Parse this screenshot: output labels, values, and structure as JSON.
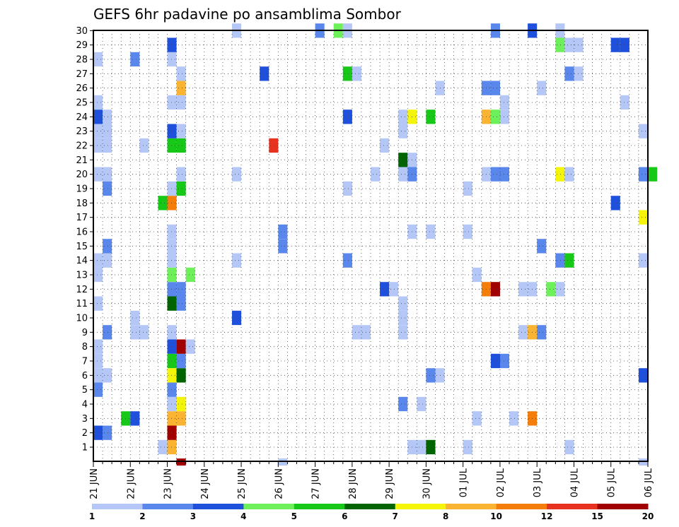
{
  "chart_data": {
    "type": "heatmap",
    "title": "GEFS 6hr padavine po ansamblima Sombor",
    "xlabel": "",
    "ylabel": "",
    "x_tick_labels": [
      "21 JUN",
      "22 JUN",
      "23 JUN",
      "24 JUN",
      "25 JUN",
      "26 JUN",
      "27 JUN",
      "28 JUN",
      "29 JUN",
      "30 JUN",
      "01 JUL",
      "02 JUL",
      "03 JUL",
      "04 JUL",
      "05 JUL",
      "06 JUL"
    ],
    "y_tick_labels": [
      "1",
      "2",
      "3",
      "4",
      "5",
      "6",
      "7",
      "8",
      "9",
      "10",
      "11",
      "12",
      "13",
      "14",
      "15",
      "16",
      "17",
      "18",
      "19",
      "20",
      "21",
      "22",
      "23",
      "24",
      "25",
      "26",
      "27",
      "28",
      "29",
      "30"
    ],
    "time_step_hours": 6,
    "grid": true,
    "legend_placement": "bottom",
    "color_scale": {
      "boundaries": [
        "1",
        "2",
        "3",
        "4",
        "5",
        "6",
        "7",
        "8",
        "10",
        "12",
        "15",
        "20"
      ],
      "colors": [
        "#b4c7f7",
        "#5a87ec",
        "#1e50dc",
        "#6ef05a",
        "#18c818",
        "#006400",
        "#f5f50a",
        "#fab432",
        "#f57d0a",
        "#e6321e",
        "#a00000"
      ]
    },
    "cells": [
      [
        0,
        28,
        0
      ],
      [
        0,
        24,
        2
      ],
      [
        0,
        23,
        0
      ],
      [
        1,
        23,
        0
      ],
      [
        0,
        22,
        0
      ],
      [
        1,
        22,
        0
      ],
      [
        0,
        20,
        0
      ],
      [
        1,
        20,
        0
      ],
      [
        1,
        19,
        1
      ],
      [
        0,
        13,
        0
      ],
      [
        0,
        11,
        0
      ],
      [
        1,
        14,
        0
      ],
      [
        1,
        15,
        1
      ],
      [
        1,
        9,
        1
      ],
      [
        0,
        8,
        0
      ],
      [
        0,
        7,
        0
      ],
      [
        0,
        6,
        0
      ],
      [
        1,
        6,
        0
      ],
      [
        0,
        5,
        1
      ],
      [
        0,
        2,
        2
      ],
      [
        1,
        2,
        1
      ],
      [
        0,
        25,
        0
      ],
      [
        1,
        24,
        0
      ],
      [
        0,
        14,
        0
      ],
      [
        3,
        3,
        4
      ],
      [
        4,
        3,
        2
      ],
      [
        4,
        28,
        1
      ],
      [
        4,
        9,
        0
      ],
      [
        5,
        9,
        0
      ],
      [
        4,
        10,
        0
      ],
      [
        5,
        22,
        0
      ],
      [
        7,
        18,
        4
      ],
      [
        8,
        18,
        8
      ],
      [
        7,
        1,
        0
      ],
      [
        8,
        1,
        7
      ],
      [
        8,
        2,
        10
      ],
      [
        8,
        3,
        7
      ],
      [
        9,
        3,
        7
      ],
      [
        8,
        4,
        0
      ],
      [
        9,
        4,
        6
      ],
      [
        8,
        5,
        1
      ],
      [
        8,
        6,
        6
      ],
      [
        9,
        6,
        5
      ],
      [
        8,
        7,
        4
      ],
      [
        9,
        7,
        1
      ],
      [
        8,
        8,
        2
      ],
      [
        9,
        8,
        10
      ],
      [
        10,
        8,
        0
      ],
      [
        8,
        9,
        0
      ],
      [
        8,
        11,
        5
      ],
      [
        9,
        11,
        1
      ],
      [
        8,
        12,
        1
      ],
      [
        9,
        12,
        1
      ],
      [
        8,
        13,
        3
      ],
      [
        10,
        13,
        3
      ],
      [
        8,
        14,
        0
      ],
      [
        8,
        15,
        0
      ],
      [
        8,
        16,
        0
      ],
      [
        8,
        19,
        0
      ],
      [
        9,
        19,
        4
      ],
      [
        9,
        20,
        0
      ],
      [
        8,
        22,
        4
      ],
      [
        9,
        22,
        4
      ],
      [
        8,
        23,
        2
      ],
      [
        9,
        23,
        0
      ],
      [
        8,
        25,
        0
      ],
      [
        9,
        25,
        0
      ],
      [
        9,
        26,
        7
      ],
      [
        9,
        27,
        0
      ],
      [
        8,
        28,
        0
      ],
      [
        8,
        29,
        2
      ],
      [
        9,
        0,
        10
      ],
      [
        15,
        30,
        0
      ],
      [
        15,
        20,
        0
      ],
      [
        15,
        14,
        0
      ],
      [
        15,
        10,
        2
      ],
      [
        18,
        27,
        2
      ],
      [
        19,
        22,
        9
      ],
      [
        20,
        15,
        1
      ],
      [
        20,
        16,
        1
      ],
      [
        20,
        0,
        0
      ],
      [
        24,
        30,
        1
      ],
      [
        26,
        30,
        3
      ],
      [
        27,
        30,
        0
      ],
      [
        27,
        27,
        4
      ],
      [
        28,
        27,
        0
      ],
      [
        27,
        24,
        2
      ],
      [
        27,
        19,
        0
      ],
      [
        28,
        9,
        0
      ],
      [
        29,
        9,
        0
      ],
      [
        27,
        14,
        1
      ],
      [
        31,
        12,
        2
      ],
      [
        30,
        20,
        0
      ],
      [
        31,
        22,
        0
      ],
      [
        32,
        12,
        0
      ],
      [
        33,
        10,
        0
      ],
      [
        33,
        9,
        0
      ],
      [
        33,
        11,
        0
      ],
      [
        33,
        24,
        0
      ],
      [
        34,
        24,
        6
      ],
      [
        33,
        23,
        0
      ],
      [
        33,
        20,
        0
      ],
      [
        34,
        20,
        1
      ],
      [
        33,
        21,
        5
      ],
      [
        34,
        21,
        0
      ],
      [
        34,
        16,
        0
      ],
      [
        33,
        4,
        1
      ],
      [
        35,
        4,
        0
      ],
      [
        34,
        1,
        0
      ],
      [
        35,
        1,
        0
      ],
      [
        36,
        1,
        5
      ],
      [
        36,
        6,
        1
      ],
      [
        37,
        6,
        0
      ],
      [
        36,
        16,
        0
      ],
      [
        36,
        24,
        4
      ],
      [
        37,
        26,
        0
      ],
      [
        40,
        1,
        0
      ],
      [
        40,
        16,
        0
      ],
      [
        40,
        19,
        0
      ],
      [
        41,
        13,
        0
      ],
      [
        41,
        3,
        0
      ],
      [
        42,
        12,
        8
      ],
      [
        43,
        12,
        10
      ],
      [
        42,
        20,
        0
      ],
      [
        43,
        20,
        1
      ],
      [
        44,
        20,
        1
      ],
      [
        42,
        24,
        7
      ],
      [
        43,
        24,
        3
      ],
      [
        44,
        24,
        0
      ],
      [
        44,
        25,
        0
      ],
      [
        42,
        26,
        1
      ],
      [
        43,
        26,
        1
      ],
      [
        43,
        30,
        1
      ],
      [
        44,
        7,
        1
      ],
      [
        43,
        7,
        2
      ],
      [
        45,
        3,
        0
      ],
      [
        46,
        12,
        0
      ],
      [
        47,
        12,
        0
      ],
      [
        46,
        9,
        0
      ],
      [
        47,
        9,
        7
      ],
      [
        48,
        9,
        1
      ],
      [
        47,
        3,
        8
      ],
      [
        47,
        30,
        2
      ],
      [
        48,
        26,
        0
      ],
      [
        48,
        15,
        1
      ],
      [
        49,
        12,
        3
      ],
      [
        50,
        12,
        0
      ],
      [
        50,
        20,
        6
      ],
      [
        51,
        20,
        0
      ],
      [
        50,
        14,
        1
      ],
      [
        51,
        14,
        4
      ],
      [
        50,
        29,
        3
      ],
      [
        51,
        29,
        0
      ],
      [
        52,
        29,
        0
      ],
      [
        51,
        27,
        1
      ],
      [
        52,
        27,
        0
      ],
      [
        50,
        30,
        0
      ],
      [
        51,
        1,
        0
      ],
      [
        56,
        29,
        2
      ],
      [
        57,
        29,
        2
      ],
      [
        57,
        25,
        0
      ],
      [
        56,
        18,
        2
      ],
      [
        59,
        20,
        1
      ],
      [
        60,
        20,
        4
      ],
      [
        59,
        17,
        6
      ],
      [
        59,
        14,
        0
      ],
      [
        59,
        6,
        2
      ],
      [
        59,
        0,
        0
      ],
      [
        59,
        23,
        0
      ]
    ],
    "extra_cells_below_axis": [
      [
        9,
        10
      ],
      [
        20,
        0
      ],
      [
        59,
        0
      ]
    ]
  }
}
